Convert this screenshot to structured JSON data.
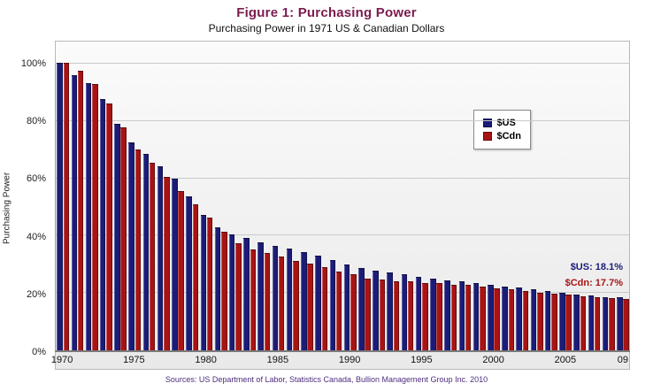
{
  "chart": {
    "title": "Figure 1: Purchasing Power",
    "subtitle": "Purchasing Power in 1971 US & Canadian Dollars",
    "ylabel": "Purchasing Power",
    "source": "Sources: US Department of Labor, Statistics Canada, Bullion Management Group Inc. 2010",
    "annotations": {
      "us": "$US: 18.1%",
      "cdn": "$Cdn: 17.7%"
    },
    "colors": {
      "title": "#7a1b4e",
      "subtitle": "#111111",
      "us": "#1c1c78",
      "cdn": "#a81414",
      "source": "#4f2d7f"
    }
  },
  "chart_data": {
    "type": "bar",
    "title": "Purchasing Power in 1971 US & Canadian Dollars",
    "xlabel": "",
    "ylabel": "Purchasing Power",
    "ylim": [
      0,
      100
    ],
    "grid": true,
    "legend_position": "top-right",
    "categories": [
      "1970",
      "1971",
      "1972",
      "1973",
      "1974",
      "1975",
      "1976",
      "1977",
      "1978",
      "1979",
      "1980",
      "1981",
      "1982",
      "1983",
      "1984",
      "1985",
      "1986",
      "1987",
      "1988",
      "1989",
      "1990",
      "1991",
      "1992",
      "1993",
      "1994",
      "1995",
      "1996",
      "1997",
      "1998",
      "1999",
      "2000",
      "2001",
      "2002",
      "2003",
      "2004",
      "2005",
      "2006",
      "2007",
      "2008",
      "2009"
    ],
    "series": [
      {
        "name": "$US",
        "color": "#1c1c78",
        "values": [
          100,
          95.8,
          92.8,
          87.4,
          78.7,
          72.1,
          68.2,
          64.0,
          59.5,
          53.4,
          47.0,
          42.6,
          40.1,
          38.9,
          37.3,
          36.0,
          35.3,
          34.1,
          32.7,
          31.2,
          29.6,
          28.4,
          27.6,
          26.8,
          26.1,
          25.4,
          24.7,
          24.1,
          23.8,
          23.2,
          22.5,
          21.9,
          21.5,
          21.1,
          20.5,
          19.8,
          19.2,
          18.7,
          18.2,
          18.1
        ]
      },
      {
        "name": "$Cdn",
        "color": "#a81414",
        "values": [
          100,
          97.1,
          92.6,
          85.9,
          77.4,
          69.9,
          65.1,
          60.3,
          55.4,
          50.7,
          46.1,
          41.0,
          37.1,
          35.0,
          33.6,
          32.3,
          31.0,
          29.8,
          28.6,
          27.3,
          26.1,
          24.7,
          24.4,
          23.9,
          23.8,
          23.3,
          23.0,
          22.6,
          22.4,
          22.0,
          21.4,
          20.9,
          20.3,
          19.8,
          19.4,
          19.0,
          18.6,
          18.2,
          17.8,
          17.7
        ]
      }
    ],
    "yticks": [
      0,
      20,
      40,
      60,
      80,
      100
    ],
    "ytick_labels": [
      "0%",
      "20%",
      "40%",
      "60%",
      "80%",
      "100%"
    ],
    "xticks": [
      {
        "index": 0,
        "label": "1970"
      },
      {
        "index": 5,
        "label": "1975"
      },
      {
        "index": 10,
        "label": "1980"
      },
      {
        "index": 15,
        "label": "1985"
      },
      {
        "index": 20,
        "label": "1990"
      },
      {
        "index": 25,
        "label": "1995"
      },
      {
        "index": 30,
        "label": "2000"
      },
      {
        "index": 35,
        "label": "2005"
      },
      {
        "index": 39,
        "label": "09"
      }
    ],
    "final_values_annotations": {
      "us": "$US: 18.1%",
      "cdn": "$Cdn: 17.7%"
    }
  }
}
